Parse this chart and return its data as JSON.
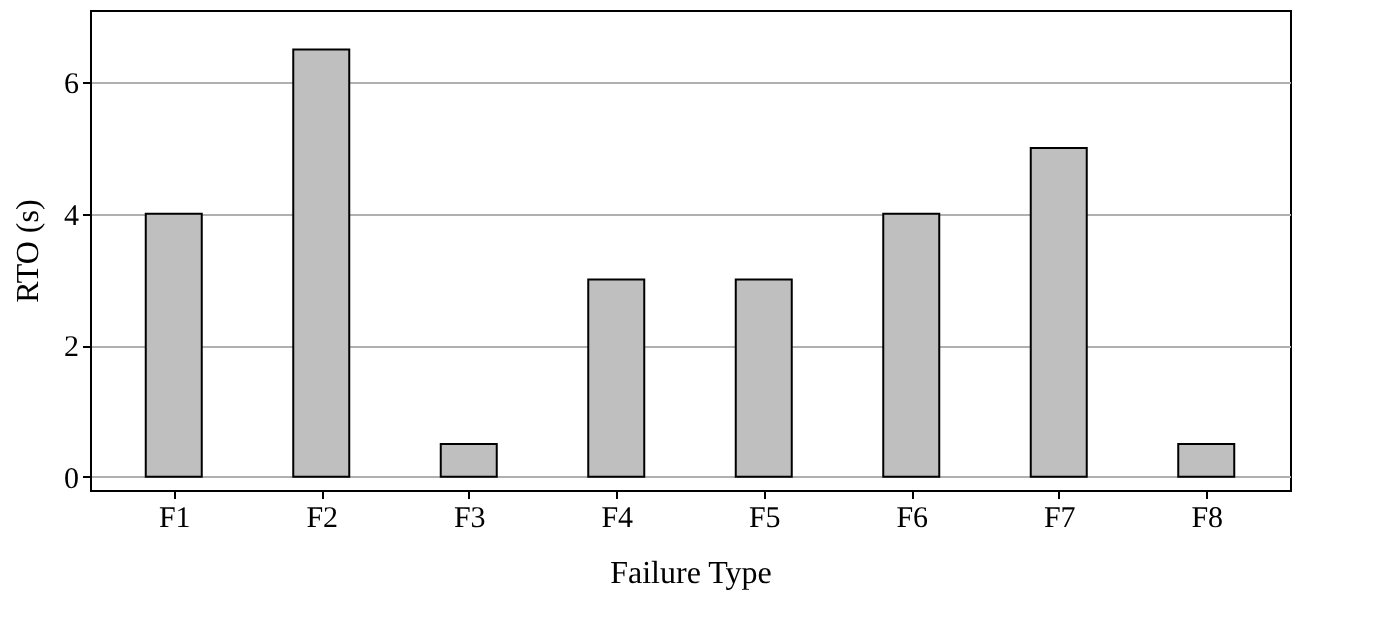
{
  "chart_data": {
    "type": "bar",
    "xlabel": "Failure Type",
    "ylabel": "RTO (s)",
    "categories": [
      "F1",
      "F2",
      "F3",
      "F4",
      "F5",
      "F6",
      "F7",
      "F8"
    ],
    "values": [
      4,
      6.5,
      0.5,
      3,
      3,
      4,
      5,
      0.5
    ],
    "color": "#bfbfbf",
    "ylim": [
      -0.2,
      7.1
    ],
    "yticks": [
      0,
      2,
      4,
      6
    ],
    "grid": "y"
  }
}
